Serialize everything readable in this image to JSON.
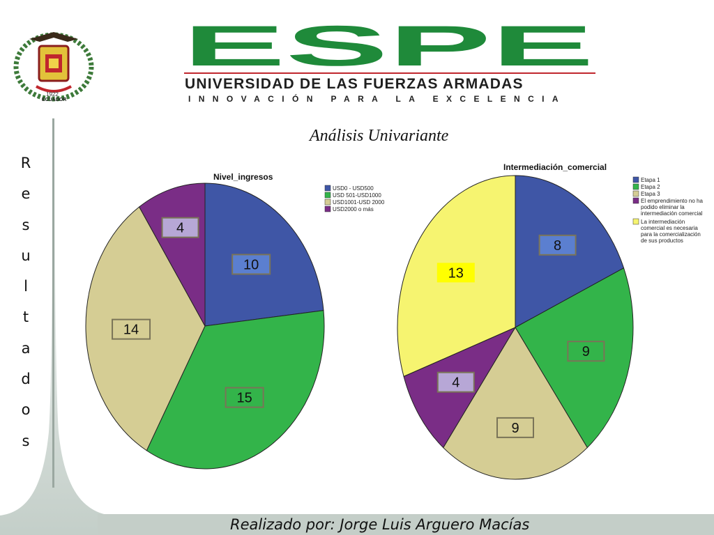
{
  "header": {
    "logo_text": "ESPE",
    "university_name": "UNIVERSIDAD DE LAS FUERZAS ARMADAS",
    "motto": "INNOVACIÓN PARA LA EXCELENCIA",
    "crest_year": "1922",
    "crest_country": "ECUADOR",
    "brand_green": "#1f8a3a",
    "brand_red": "#c0262d"
  },
  "side_title": "Resultados",
  "subtitle": "Análisis Univariante",
  "footer": {
    "credit": "Realizado por: Jorge Luis Arguero Macías"
  },
  "chart_data": [
    {
      "type": "pie",
      "title": "Nivel_ingresos",
      "legend_position": "right",
      "slices": [
        {
          "label": "USD0 - USD500",
          "value": 10,
          "color": "#3f56a6"
        },
        {
          "label": "USD 501-USD1000",
          "value": 15,
          "color": "#33b44a"
        },
        {
          "label": "USD1001-USD 2000",
          "value": 14,
          "color": "#d5cd94"
        },
        {
          "label": "USD2000 o más",
          "value": 4,
          "color": "#7a2d86"
        }
      ]
    },
    {
      "type": "pie",
      "title": "Intermediación_comercial",
      "legend_position": "right",
      "slices": [
        {
          "label": "Etapa 1",
          "value": 8,
          "color": "#3f56a6"
        },
        {
          "label": "Etapa 2",
          "value": 9,
          "color": "#33b44a"
        },
        {
          "label": "Etapa 3",
          "value": 9,
          "color": "#d5cd94"
        },
        {
          "label": "El emprendimiento no ha podido eliminar la intermediación comercial",
          "value": 4,
          "color": "#7a2d86"
        },
        {
          "label": "La intermediación comercial es necesaria para la comercialización de sus productos",
          "value": 13,
          "color": "#f6f470"
        }
      ]
    }
  ]
}
